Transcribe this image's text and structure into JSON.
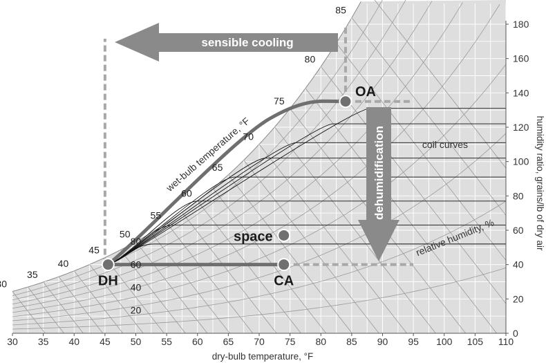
{
  "chart_data": {
    "type": "psychrometric",
    "xlabel": "dry-bulb temperature, °F",
    "ylabel": "humidity ratio, grains/lb of dry air",
    "xlim": [
      30,
      110
    ],
    "ylim": [
      0,
      185
    ],
    "x_ticks": [
      "30",
      "35",
      "40",
      "45",
      "50",
      "55",
      "60",
      "65",
      "70",
      "75",
      "80",
      "85",
      "90",
      "95",
      "100",
      "105",
      "110"
    ],
    "y_ticks": [
      "0",
      "20",
      "40",
      "60",
      "80",
      "100",
      "120",
      "140",
      "160",
      "180"
    ],
    "wet_bulb": {
      "axis_title": "wet-bulb temperature, °F",
      "labels": [
        "30",
        "35",
        "40",
        "45",
        "50",
        "55",
        "60",
        "65",
        "70",
        "75",
        "80",
        "85"
      ]
    },
    "relative_humidity": {
      "axis_title": "relative humidity, %",
      "labels": [
        "20",
        "40",
        "60",
        "80"
      ]
    },
    "coil_curves_label": "coil curves",
    "points": [
      {
        "label": "OA",
        "db": 84,
        "w": 135
      },
      {
        "label": "DH",
        "db": 45.5,
        "w": 40
      },
      {
        "label": "CA",
        "db": 74,
        "w": 40
      },
      {
        "label": "space",
        "db": 74,
        "w": 57
      }
    ],
    "process_arrows": [
      {
        "label": "sensible cooling"
      },
      {
        "label": "dehumidification"
      }
    ]
  }
}
